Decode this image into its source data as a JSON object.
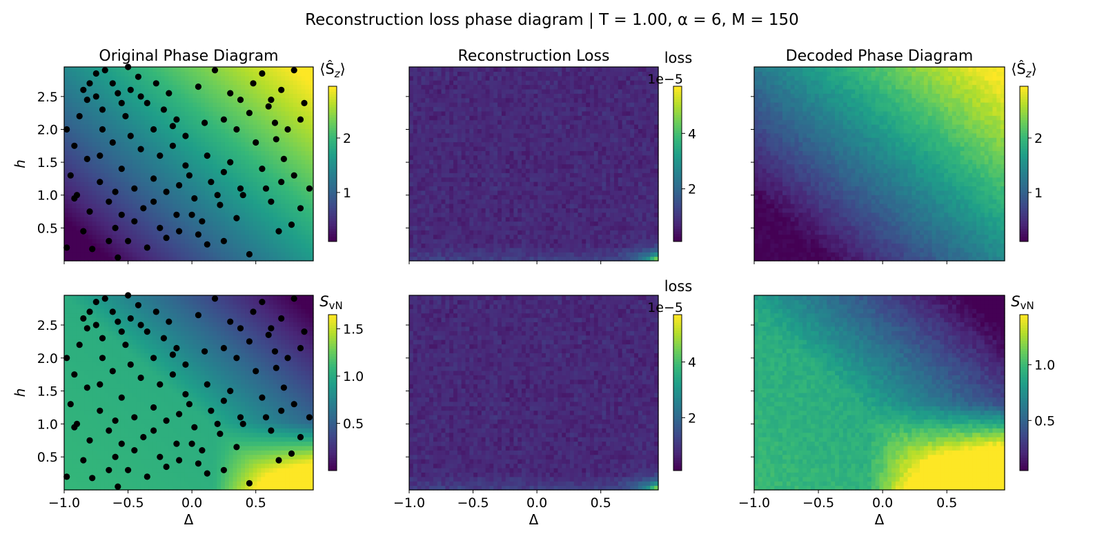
{
  "figure": {
    "suptitle": "Reconstruction loss phase diagram | T = 1.00, α = 6, M = 150"
  },
  "colormap": {
    "name": "viridis",
    "stops": [
      "#440154",
      "#482878",
      "#3e4989",
      "#31688e",
      "#26828e",
      "#1f9e89",
      "#35b779",
      "#6ece58",
      "#b5de2b",
      "#fde725"
    ]
  },
  "points": {
    "color": "#000000",
    "samples": [
      [
        -0.98,
        2.0
      ],
      [
        -0.92,
        1.75
      ],
      [
        -0.85,
        2.6
      ],
      [
        -0.82,
        2.45
      ],
      [
        -0.8,
        2.7
      ],
      [
        -0.75,
        2.5
      ],
      [
        -0.72,
        1.6
      ],
      [
        -0.7,
        2.3
      ],
      [
        -0.68,
        2.9
      ],
      [
        -0.62,
        2.7
      ],
      [
        -0.58,
        2.55
      ],
      [
        -0.55,
        2.4
      ],
      [
        -0.52,
        2.2
      ],
      [
        -0.5,
        2.95
      ],
      [
        -0.48,
        2.6
      ],
      [
        -0.42,
        2.8
      ],
      [
        -0.4,
        2.5
      ],
      [
        -0.35,
        2.4
      ],
      [
        -0.3,
        2.0
      ],
      [
        -0.28,
        2.7
      ],
      [
        -0.22,
        2.3
      ],
      [
        -0.18,
        2.55
      ],
      [
        -0.12,
        2.15
      ],
      [
        -0.05,
        1.9
      ],
      [
        0.05,
        2.65
      ],
      [
        0.1,
        2.1
      ],
      [
        0.18,
        2.9
      ],
      [
        0.25,
        2.15
      ],
      [
        0.3,
        2.55
      ],
      [
        0.38,
        2.45
      ],
      [
        0.45,
        2.25
      ],
      [
        0.55,
        2.85
      ],
      [
        0.6,
        2.35
      ],
      [
        0.65,
        2.1
      ],
      [
        0.7,
        2.6
      ],
      [
        0.75,
        2.0
      ],
      [
        0.8,
        2.9
      ],
      [
        0.85,
        2.15
      ],
      [
        -0.95,
        1.3
      ],
      [
        -0.9,
        1.0
      ],
      [
        -0.8,
        0.75
      ],
      [
        -0.72,
        1.2
      ],
      [
        -0.65,
        0.9
      ],
      [
        -0.6,
        0.5
      ],
      [
        -0.55,
        1.4
      ],
      [
        -0.5,
        0.3
      ],
      [
        -0.45,
        1.1
      ],
      [
        -0.38,
        0.8
      ],
      [
        -0.3,
        1.25
      ],
      [
        -0.25,
        0.5
      ],
      [
        -0.2,
        1.05
      ],
      [
        -0.12,
        0.7
      ],
      [
        -0.05,
        1.45
      ],
      [
        0.02,
        0.95
      ],
      [
        0.08,
        0.6
      ],
      [
        0.15,
        1.2
      ],
      [
        0.22,
        0.85
      ],
      [
        0.3,
        1.5
      ],
      [
        0.38,
        1.1
      ],
      [
        0.45,
        0.1
      ],
      [
        0.55,
        1.4
      ],
      [
        0.62,
        0.9
      ],
      [
        0.7,
        1.2
      ],
      [
        0.78,
        0.55
      ],
      [
        0.85,
        0.8
      ],
      [
        0.92,
        1.1
      ],
      [
        -0.98,
        0.2
      ],
      [
        -0.85,
        0.45
      ],
      [
        -0.78,
        0.18
      ],
      [
        -0.65,
        0.3
      ],
      [
        -0.58,
        0.05
      ],
      [
        -0.45,
        0.6
      ],
      [
        -0.35,
        0.2
      ],
      [
        -0.2,
        0.35
      ],
      [
        -0.1,
        0.45
      ],
      [
        0.0,
        0.7
      ],
      [
        0.12,
        0.25
      ],
      [
        0.25,
        0.3
      ],
      [
        0.35,
        0.65
      ],
      [
        0.68,
        0.45
      ],
      [
        -0.88,
        2.2
      ],
      [
        -0.7,
        2.0
      ],
      [
        -0.62,
        1.8
      ],
      [
        -0.48,
        1.9
      ],
      [
        -0.4,
        1.7
      ],
      [
        -0.25,
        1.6
      ],
      [
        -0.15,
        1.75
      ],
      [
        -0.02,
        1.3
      ],
      [
        0.12,
        1.6
      ],
      [
        0.25,
        1.35
      ],
      [
        0.4,
        1.0
      ],
      [
        0.5,
        1.8
      ],
      [
        0.62,
        2.45
      ],
      [
        0.72,
        1.55
      ],
      [
        0.88,
        2.4
      ],
      [
        -0.92,
        0.95
      ],
      [
        -0.82,
        1.55
      ],
      [
        -0.75,
        2.85
      ],
      [
        -0.55,
        0.7
      ],
      [
        -0.3,
        0.9
      ],
      [
        -0.15,
        2.05
      ],
      [
        0.05,
        0.4
      ],
      [
        0.2,
        1.0
      ],
      [
        0.35,
        2.0
      ],
      [
        0.48,
        2.7
      ],
      [
        0.58,
        1.1
      ],
      [
        0.66,
        1.85
      ],
      [
        0.8,
        1.3
      ],
      [
        -0.6,
        1.05
      ],
      [
        -0.1,
        1.15
      ]
    ]
  },
  "panels": [
    {
      "title": "Original Phase Diagram",
      "ylabel": "h",
      "xlabel": "",
      "cbar_label": "⟨Ŝz⟩",
      "cbar_offset": "",
      "cbar_ticks": [
        "1",
        "2"
      ],
      "ytick_labels": [
        "0.5",
        "1.0",
        "1.5",
        "2.0",
        "2.5"
      ],
      "xtick_labels": [
        "",
        "",
        "",
        "",
        ""
      ]
    },
    {
      "title": "Reconstruction Loss",
      "ylabel": "",
      "xlabel": "",
      "cbar_label": "loss",
      "cbar_offset": "1e−5",
      "cbar_ticks": [
        "2",
        "4"
      ],
      "ytick_labels": [
        "",
        "",
        "",
        "",
        ""
      ],
      "xtick_labels": [
        "",
        "",
        "",
        "",
        ""
      ]
    },
    {
      "title": "Decoded Phase Diagram",
      "ylabel": "",
      "xlabel": "",
      "cbar_label": "⟨Ŝz⟩",
      "cbar_offset": "",
      "cbar_ticks": [
        "1",
        "2"
      ],
      "ytick_labels": [
        "",
        "",
        "",
        "",
        ""
      ],
      "xtick_labels": [
        "",
        "",
        "",
        "",
        ""
      ]
    },
    {
      "title": "",
      "ylabel": "h",
      "xlabel": "Δ",
      "cbar_label": "SvN",
      "cbar_offset": "",
      "cbar_ticks": [
        "0.5",
        "1.0",
        "1.5"
      ],
      "ytick_labels": [
        "0.5",
        "1.0",
        "1.5",
        "2.0",
        "2.5"
      ],
      "xtick_labels": [
        "−1.0",
        "−0.5",
        "0.0",
        "0.5"
      ]
    },
    {
      "title": "",
      "ylabel": "",
      "xlabel": "Δ",
      "cbar_label": "loss",
      "cbar_offset": "1e−5",
      "cbar_ticks": [
        "2",
        "4"
      ],
      "ytick_labels": [
        "",
        "",
        "",
        "",
        ""
      ],
      "xtick_labels": [
        "−1.0",
        "−0.5",
        "0.0",
        "0.5"
      ]
    },
    {
      "title": "",
      "ylabel": "",
      "xlabel": "Δ",
      "cbar_label": "SvN",
      "cbar_offset": "",
      "cbar_ticks": [
        "0.5",
        "1.0"
      ],
      "ytick_labels": [
        "",
        "",
        "",
        "",
        ""
      ],
      "xtick_labels": [
        "−1.0",
        "−0.5",
        "0.0",
        "0.5"
      ]
    }
  ],
  "chart_data": [
    {
      "type": "heatmap",
      "title": "Original Phase Diagram",
      "xlabel": "",
      "ylabel": "h",
      "x_range": [
        -1.0,
        0.95
      ],
      "y_range": [
        0.0,
        2.95
      ],
      "color_range": [
        0.1,
        2.95
      ],
      "colorbar_label": "⟨Ŝz⟩",
      "colorbar_ticks": [
        1,
        2
      ],
      "field": "sz_original",
      "description": "Smooth field rising from low values (bottom-left) to high values (top-right), with sampled points overlaid as black dots",
      "scatter_overlay": true
    },
    {
      "type": "heatmap",
      "title": "Reconstruction Loss",
      "colorbar_label": "loss",
      "colorbar_offset": "1e−5",
      "x_range": [
        -1.0,
        0.95
      ],
      "y_range": [
        0.0,
        2.95
      ],
      "color_range": [
        0.1,
        5.7
      ],
      "colorbar_ticks": [
        2,
        4
      ],
      "field": "loss",
      "description": "Noisy low loss everywhere (~0.5) with a hot spot near bottom-right corner"
    },
    {
      "type": "heatmap",
      "title": "Decoded Phase Diagram",
      "x_range": [
        -1.0,
        0.95
      ],
      "y_range": [
        0.0,
        2.95
      ],
      "color_range": [
        0.1,
        2.95
      ],
      "colorbar_label": "⟨Ŝz⟩",
      "colorbar_ticks": [
        1,
        2
      ],
      "field": "sz_decoded"
    },
    {
      "type": "heatmap",
      "xlabel": "Δ",
      "ylabel": "h",
      "x_range": [
        -1.0,
        0.95
      ],
      "y_range": [
        0.0,
        2.95
      ],
      "color_range": [
        0.0,
        1.65
      ],
      "colorbar_label": "SvN",
      "colorbar_ticks": [
        0.5,
        1.0,
        1.5
      ],
      "field": "svn_original",
      "scatter_overlay": true
    },
    {
      "type": "heatmap",
      "xlabel": "Δ",
      "colorbar_label": "loss",
      "colorbar_offset": "1e−5",
      "x_range": [
        -1.0,
        0.95
      ],
      "y_range": [
        0.0,
        2.95
      ],
      "color_range": [
        0.1,
        5.7
      ],
      "colorbar_ticks": [
        2,
        4
      ],
      "field": "loss"
    },
    {
      "type": "heatmap",
      "xlabel": "Δ",
      "x_range": [
        -1.0,
        0.95
      ],
      "y_range": [
        0.0,
        2.95
      ],
      "color_range": [
        0.05,
        1.45
      ],
      "colorbar_label": "SvN",
      "colorbar_ticks": [
        0.5,
        1.0
      ],
      "field": "svn_decoded"
    }
  ]
}
